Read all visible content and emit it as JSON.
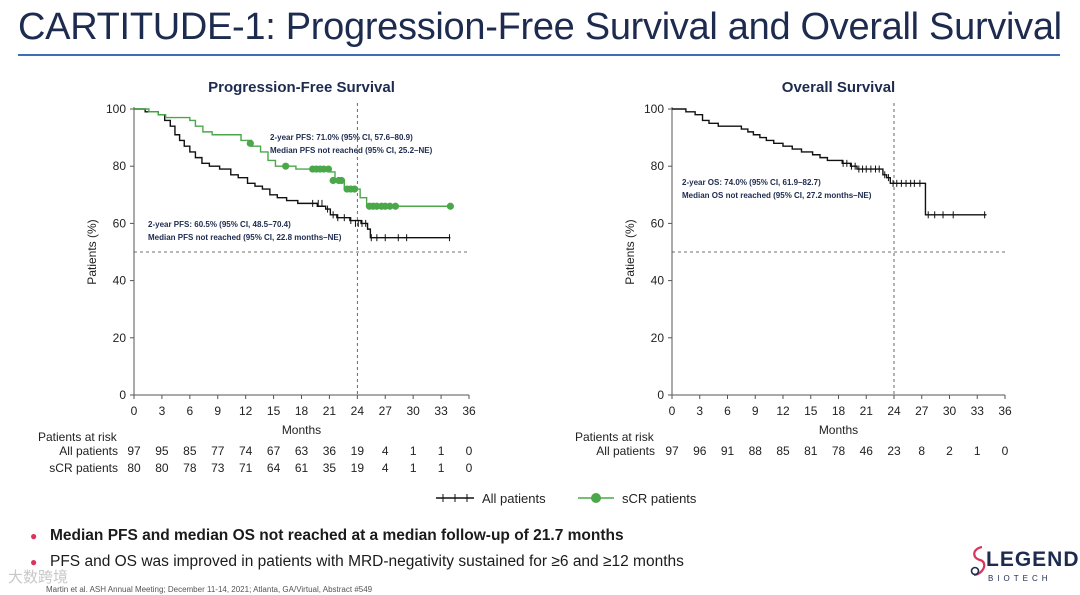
{
  "title": "CARTITUDE-1: Progression-Free Survival and Overall Survival",
  "chart_data": [
    {
      "type": "line",
      "title": "Progression-Free Survival",
      "xlabel": "Months",
      "ylabel": "Patients (%)",
      "xlim": [
        0,
        36
      ],
      "ylim": [
        0,
        100
      ],
      "xticks": [
        0,
        3,
        6,
        9,
        12,
        15,
        18,
        21,
        24,
        27,
        30,
        33,
        36
      ],
      "yticks": [
        0,
        20,
        40,
        60,
        80,
        100
      ],
      "reference_lines": {
        "x": 24,
        "y": 50
      },
      "series": [
        {
          "name": "All patients",
          "marker": "tick",
          "color": "#111111",
          "steps": [
            [
              0,
              100
            ],
            [
              1.2,
              99
            ],
            [
              2.6,
              98
            ],
            [
              3.3,
              96
            ],
            [
              3.9,
              94
            ],
            [
              4.4,
              91
            ],
            [
              4.9,
              89
            ],
            [
              5.4,
              87
            ],
            [
              6.0,
              85
            ],
            [
              6.6,
              83
            ],
            [
              7.3,
              81
            ],
            [
              8.1,
              80
            ],
            [
              9.2,
              79
            ],
            [
              10.4,
              77
            ],
            [
              11.2,
              76
            ],
            [
              12.2,
              74
            ],
            [
              13.0,
              73
            ],
            [
              13.8,
              72
            ],
            [
              14.6,
              70
            ],
            [
              15.4,
              69
            ],
            [
              16.4,
              68
            ],
            [
              17.6,
              67
            ],
            [
              19.7,
              66
            ],
            [
              20.6,
              65
            ],
            [
              21.1,
              63
            ],
            [
              21.8,
              62
            ],
            [
              22.5,
              62
            ],
            [
              23.2,
              61
            ],
            [
              24.4,
              60
            ],
            [
              25.1,
              58
            ],
            [
              25.4,
              55
            ],
            [
              34,
              55
            ]
          ],
          "censors": [
            [
              19.2,
              67
            ],
            [
              19.8,
              67
            ],
            [
              20.2,
              67
            ],
            [
              20.8,
              65
            ],
            [
              21.4,
              63
            ],
            [
              21.9,
              62
            ],
            [
              22.6,
              62
            ],
            [
              23.3,
              61
            ],
            [
              23.8,
              60
            ],
            [
              24.1,
              60
            ],
            [
              24.5,
              60
            ],
            [
              24.9,
              60
            ],
            [
              25.5,
              55
            ],
            [
              26.1,
              55
            ],
            [
              27.0,
              55
            ],
            [
              28.4,
              55
            ],
            [
              29.3,
              55
            ],
            [
              33.9,
              55
            ]
          ],
          "at_risk": [
            97,
            95,
            85,
            77,
            74,
            67,
            63,
            36,
            19,
            4,
            1,
            1,
            0
          ]
        },
        {
          "name": "sCR patients",
          "marker": "dot",
          "color": "#4aa84a",
          "steps": [
            [
              0,
              100
            ],
            [
              1.6,
              99
            ],
            [
              2.6,
              98
            ],
            [
              3.4,
              97
            ],
            [
              6.0,
              96
            ],
            [
              6.6,
              94
            ],
            [
              7.4,
              92
            ],
            [
              8.4,
              91
            ],
            [
              11.5,
              89
            ],
            [
              12.6,
              87
            ],
            [
              13.6,
              85
            ],
            [
              14.4,
              82
            ],
            [
              15.2,
              80
            ],
            [
              17.4,
              79
            ],
            [
              21.1,
              78
            ],
            [
              21.6,
              75
            ],
            [
              22.6,
              72
            ],
            [
              24.3,
              69
            ],
            [
              25.0,
              66
            ],
            [
              34,
              66
            ]
          ],
          "censors": [
            [
              12.5,
              88
            ],
            [
              16.3,
              80
            ],
            [
              19.2,
              79
            ],
            [
              19.6,
              79
            ],
            [
              20.0,
              79
            ],
            [
              20.4,
              79
            ],
            [
              20.9,
              79
            ],
            [
              21.4,
              75
            ],
            [
              22.0,
              75
            ],
            [
              22.3,
              75
            ],
            [
              22.9,
              72
            ],
            [
              23.3,
              72
            ],
            [
              23.7,
              72
            ],
            [
              25.3,
              66
            ],
            [
              25.7,
              66
            ],
            [
              26.1,
              66
            ],
            [
              26.6,
              66
            ],
            [
              27.0,
              66
            ],
            [
              27.5,
              66
            ],
            [
              28.1,
              66
            ],
            [
              34.0,
              66
            ]
          ],
          "at_risk": [
            80,
            80,
            78,
            73,
            71,
            64,
            61,
            35,
            19,
            4,
            1,
            1,
            0
          ]
        }
      ],
      "annotations": [
        {
          "target": "sCR patients",
          "lines": [
            "2-year PFS: 71.0% (95% CI, 57.6–80.9)",
            "Median PFS not reached (95% CI, 25.2–NE)"
          ]
        },
        {
          "target": "All patients",
          "lines": [
            "2-year PFS: 60.5% (95% CI, 48.5–70.4)",
            "Median PFS not reached (95% CI, 22.8 months–NE)"
          ]
        }
      ],
      "at_risk_header": "Patients at risk",
      "at_risk_labels": [
        "All patients",
        "sCR patients"
      ]
    },
    {
      "type": "line",
      "title": "Overall Survival",
      "xlabel": "Months",
      "ylabel": "Patients (%)",
      "xlim": [
        0,
        36
      ],
      "ylim": [
        0,
        100
      ],
      "xticks": [
        0,
        3,
        6,
        9,
        12,
        15,
        18,
        21,
        24,
        27,
        30,
        33,
        36
      ],
      "yticks": [
        0,
        20,
        40,
        60,
        80,
        100
      ],
      "reference_lines": {
        "x": 24,
        "y": 50
      },
      "series": [
        {
          "name": "All patients",
          "marker": "tick",
          "color": "#111111",
          "steps": [
            [
              0,
              100
            ],
            [
              1.5,
              99
            ],
            [
              2.5,
              98
            ],
            [
              3.3,
              96
            ],
            [
              4.0,
              95
            ],
            [
              5.0,
              94
            ],
            [
              7.5,
              93
            ],
            [
              8.2,
              92
            ],
            [
              8.8,
              91
            ],
            [
              9.5,
              90
            ],
            [
              10.2,
              89
            ],
            [
              11.0,
              88
            ],
            [
              12.0,
              87
            ],
            [
              13.0,
              86
            ],
            [
              14.0,
              85
            ],
            [
              15.2,
              84
            ],
            [
              16.0,
              83
            ],
            [
              16.8,
              82
            ],
            [
              18.4,
              81
            ],
            [
              19.3,
              80
            ],
            [
              20.0,
              79
            ],
            [
              22.8,
              77
            ],
            [
              23.2,
              76
            ],
            [
              23.6,
              74
            ],
            [
              27.4,
              63
            ],
            [
              34,
              63
            ]
          ],
          "censors": [
            [
              18.5,
              81
            ],
            [
              18.9,
              81
            ],
            [
              19.4,
              80
            ],
            [
              19.8,
              80
            ],
            [
              20.2,
              79
            ],
            [
              20.6,
              79
            ],
            [
              21.0,
              79
            ],
            [
              21.5,
              79
            ],
            [
              22.0,
              79
            ],
            [
              22.4,
              79
            ],
            [
              23.0,
              77
            ],
            [
              23.4,
              76
            ],
            [
              23.9,
              74
            ],
            [
              24.3,
              74
            ],
            [
              24.8,
              74
            ],
            [
              25.3,
              74
            ],
            [
              25.8,
              74
            ],
            [
              26.2,
              74
            ],
            [
              26.8,
              74
            ],
            [
              27.7,
              63
            ],
            [
              28.4,
              63
            ],
            [
              29.3,
              63
            ],
            [
              30.4,
              63
            ],
            [
              33.8,
              63
            ]
          ],
          "at_risk": [
            97,
            96,
            91,
            88,
            85,
            81,
            78,
            46,
            23,
            8,
            2,
            1,
            0
          ]
        }
      ],
      "annotations": [
        {
          "target": "All patients",
          "lines": [
            "2-year OS: 74.0% (95% CI, 61.9–82.7)",
            "Median OS not reached (95% CI, 27.2 months–NE)"
          ]
        }
      ],
      "at_risk_header": "Patients at risk",
      "at_risk_labels": [
        "All patients"
      ]
    }
  ],
  "legend": {
    "items": [
      "All patients",
      "sCR patients"
    ]
  },
  "bullets": [
    {
      "text": "Median PFS and median OS not reached at a median follow-up of 21.7 months",
      "bold": true
    },
    {
      "text": "PFS and OS was improved in patients with MRD-negativity sustained for ≥6 and ≥12 months",
      "bold": false
    }
  ],
  "footnote": "Martin et al. ASH Annual Meeting; December 11-14, 2021; Atlanta, GA/Virtual, Abstract #549",
  "watermark": "大数跨境",
  "logo": {
    "word": "LEGEND",
    "sub": "BIOTECH"
  },
  "colors": {
    "title": "#1d2b4f",
    "rule": "#3b6fb6",
    "bullet": "#d7355b",
    "scr": "#4aa84a",
    "all": "#111111"
  }
}
